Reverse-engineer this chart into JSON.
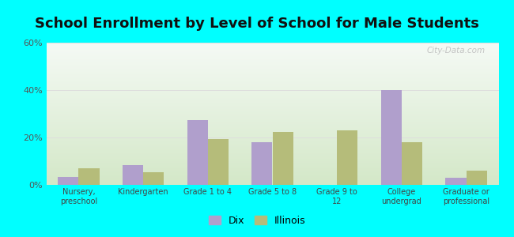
{
  "title": "School Enrollment by Level of School for Male Students",
  "categories": [
    "Nursery,\npreschool",
    "Kindergarten",
    "Grade 1 to 4",
    "Grade 5 to 8",
    "Grade 9 to\n12",
    "College\nundergrad",
    "Graduate or\nprofessional"
  ],
  "dix_values": [
    3.5,
    8.5,
    27.5,
    18.0,
    0.0,
    40.0,
    3.0
  ],
  "illinois_values": [
    7.0,
    5.5,
    19.5,
    22.5,
    23.0,
    18.0,
    6.0
  ],
  "dix_color": "#b09fcc",
  "illinois_color": "#b5bc7a",
  "background_color": "#00ffff",
  "ylim": [
    0,
    60
  ],
  "yticks": [
    0,
    20,
    40,
    60
  ],
  "ytick_labels": [
    "0%",
    "20%",
    "40%",
    "60%"
  ],
  "title_fontsize": 13,
  "legend_labels": [
    "Dix",
    "Illinois"
  ],
  "bar_width": 0.32,
  "grid_color": "#dddddd",
  "watermark": "City-Data.com",
  "grad_top": "#f5faf5",
  "grad_bottom": "#d4e8c8"
}
